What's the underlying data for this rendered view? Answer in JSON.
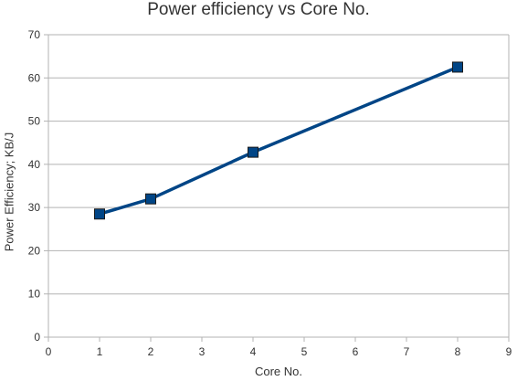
{
  "chart_data": {
    "type": "line",
    "title": "Power efficiency vs Core No.",
    "xlabel": "Core No.",
    "ylabel": "Power Efficiency; KB/J",
    "xlim": [
      0,
      9
    ],
    "ylim": [
      0,
      70
    ],
    "x_ticks": [
      0,
      1,
      2,
      3,
      4,
      5,
      6,
      7,
      8,
      9
    ],
    "y_ticks": [
      0,
      10,
      20,
      30,
      40,
      50,
      60,
      70
    ],
    "grid": "horizontal",
    "legend": "none",
    "series": [
      {
        "x": [
          1,
          2,
          4,
          8
        ],
        "values": [
          28.5,
          32,
          42.8,
          62.5
        ],
        "color": "#004586",
        "marker": "square"
      }
    ]
  }
}
